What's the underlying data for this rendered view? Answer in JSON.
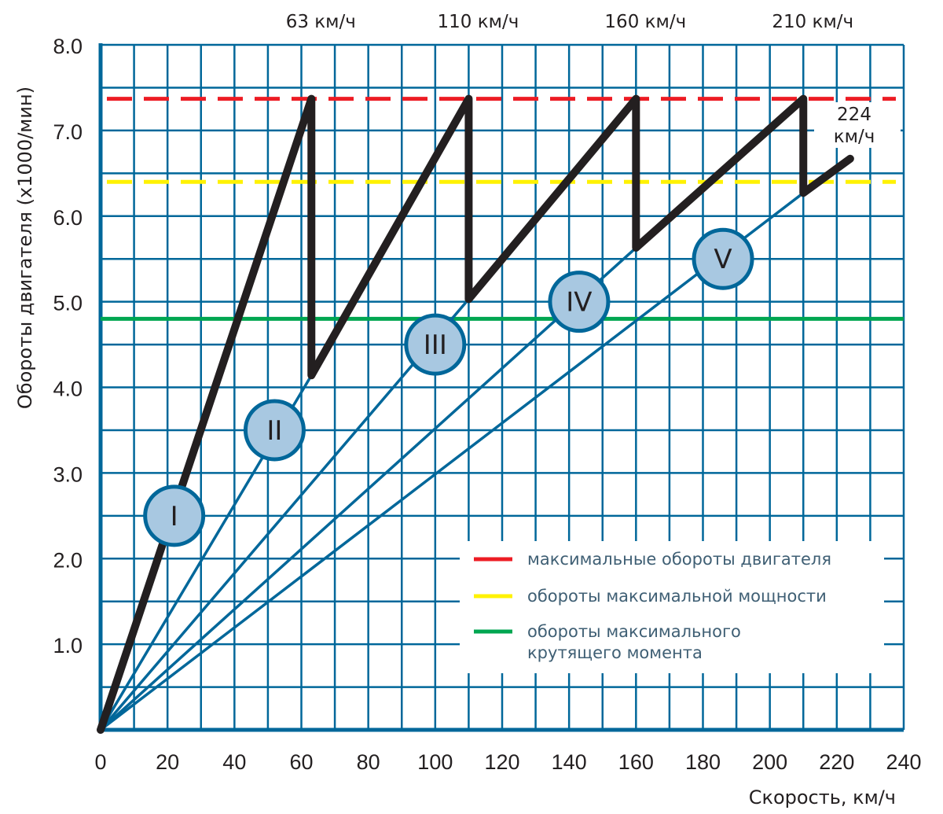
{
  "chart_data": {
    "type": "line",
    "title": "",
    "xlabel": "Скорость, км/ч",
    "ylabel": "Обороты двигателя (x1000/мин)",
    "xlim": [
      0,
      240
    ],
    "ylim": [
      0,
      8
    ],
    "grid": true,
    "x_ticks": [
      0,
      20,
      40,
      60,
      80,
      100,
      120,
      140,
      160,
      180,
      200,
      220,
      240
    ],
    "x_tick_labels": [
      "0",
      "20",
      "40",
      "60",
      "80",
      "100",
      "120",
      "140",
      "160",
      "180",
      "200",
      "220",
      "240"
    ],
    "y_ticks": [
      1,
      2,
      3,
      4,
      5,
      6,
      7,
      8
    ],
    "y_tick_labels": [
      "1.0",
      "2.0",
      "3.0",
      "4.0",
      "5.0",
      "6.0",
      "7.0",
      "8.0"
    ],
    "shift_speed_labels": [
      {
        "x": 63,
        "text": "63 км/ч"
      },
      {
        "x": 110,
        "text": "110 км/ч"
      },
      {
        "x": 160,
        "text": "160 км/ч"
      },
      {
        "x": 210,
        "text": "210 км/ч"
      }
    ],
    "end_label": {
      "line1": "224",
      "line2": "км/ч"
    },
    "reference_lines": [
      {
        "name": "максимальные обороты двигателя",
        "y": 7.37,
        "color": "#ed1c24",
        "style": "dashed"
      },
      {
        "name": "обороты максимальной мощности",
        "y": 6.4,
        "color": "#fff200",
        "style": "dashed"
      },
      {
        "name": "обороты максимального крутящего момента",
        "y": 4.8,
        "color": "#00a651",
        "style": "solid"
      }
    ],
    "legend": {
      "position": "bottom-right",
      "entries": [
        {
          "lines": [
            "максимальные обороты двигателя"
          ],
          "color": "#ed1c24"
        },
        {
          "lines": [
            "обороты максимальной мощности"
          ],
          "color": "#fff200"
        },
        {
          "lines": [
            "обороты максимального",
            "крутящего момента"
          ],
          "color": "#00a651"
        }
      ]
    },
    "gears": [
      {
        "label": "I",
        "end": [
          63,
          7.37
        ],
        "marker": [
          22,
          2.5
        ]
      },
      {
        "label": "II",
        "end": [
          63,
          4.14
        ],
        "marker": [
          52,
          3.5
        ]
      },
      {
        "label": "III",
        "end": [
          110,
          5.03
        ],
        "marker": [
          100,
          4.5
        ]
      },
      {
        "label": "IV",
        "end": [
          160,
          5.63
        ],
        "marker": [
          143,
          5.0
        ]
      },
      {
        "label": "V",
        "end": [
          210,
          6.27
        ],
        "marker": [
          186,
          5.5
        ]
      }
    ],
    "series": [
      {
        "name": "shift-path",
        "color": "#231f20",
        "x": [
          0,
          63,
          63,
          110,
          110,
          160,
          160,
          210,
          210,
          224
        ],
        "y": [
          0,
          7.37,
          4.14,
          7.37,
          5.03,
          7.37,
          5.63,
          7.37,
          6.27,
          6.67
        ]
      }
    ],
    "colors": {
      "grid": "#00679a",
      "gear_line": "#00679a",
      "gear_fill": "#a8c8e1",
      "path": "#231f20"
    }
  }
}
